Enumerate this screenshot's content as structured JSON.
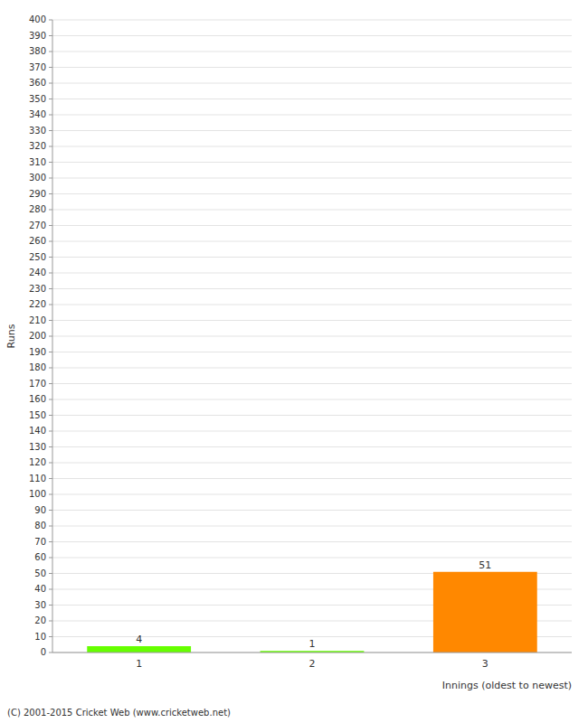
{
  "chart_data": {
    "type": "bar",
    "categories": [
      "1",
      "2",
      "3"
    ],
    "values": [
      4,
      1,
      51
    ],
    "colors": [
      "#66ff00",
      "#66ff00",
      "#ff8800"
    ],
    "xlabel": "Innings (oldest to newest)",
    "ylabel": "Runs",
    "ylim": [
      0,
      400
    ],
    "yticks": [
      0,
      10,
      20,
      30,
      40,
      50,
      60,
      70,
      80,
      90,
      100,
      110,
      120,
      130,
      140,
      150,
      160,
      170,
      180,
      190,
      200,
      210,
      220,
      230,
      240,
      250,
      260,
      270,
      280,
      290,
      300,
      310,
      320,
      330,
      340,
      350,
      360,
      370,
      380,
      390,
      400
    ],
    "grid": true,
    "data_labels": true,
    "annotations": [
      "(C) 2001-2015 Cricket Web (www.cricketweb.net)"
    ]
  }
}
